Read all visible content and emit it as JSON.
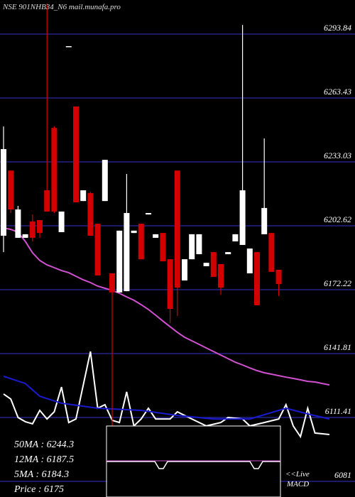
{
  "chart_data": {
    "type": "candlestick",
    "title": "NSE 901NHB34_N6  mail.munafa.pro",
    "ylim": [
      6073.57,
      6310.06
    ],
    "yticks": [
      6293.84,
      6263.43,
      6233.03,
      6202.62,
      6172.22,
      6141.81,
      6111.41,
      6081
    ],
    "grid": true,
    "grid_color": "#2a2aa8",
    "up_color": "#ffffff",
    "down_color": "#d40000",
    "open": [
      6197.9,
      6228.9,
      6196.9,
      6196.9,
      6204.7,
      6205.3,
      6219.5,
      6249.2,
      6199.6,
      6288.1,
      6259.4,
      6214.4,
      6218.2,
      6203.6,
      6214.4,
      6180.0,
      6170.9,
      6171.5,
      6199.2,
      6203.6,
      6208.0,
      6196.9,
      6199.2,
      6186.7,
      6228.9,
      6176.6,
      6186.7,
      6189.1,
      6183.4,
      6190.1,
      6184.4,
      6189.1,
      6195.2,
      6193.5,
      6180.0,
      6190.1,
      6198.6,
      6199.2,
      6181.7
    ],
    "high": [
      6249.9,
      6228.9,
      6212.1,
      6198.6,
      6208.0,
      6205.3,
      6308.4,
      6249.9,
      6209.4,
      6288.1,
      6259.4,
      6219.5,
      6218.8,
      6203.6,
      6234.0,
      6180.0,
      6200.3,
      6227.3,
      6200.3,
      6203.6,
      6208.7,
      6198.6,
      6199.2,
      6186.7,
      6228.9,
      6186.7,
      6198.6,
      6198.6,
      6185.0,
      6190.1,
      6184.4,
      6190.1,
      6198.6,
      6298.2,
      6191.8,
      6190.1,
      6244.2,
      6199.2,
      6181.7
    ],
    "low": [
      6190.1,
      6208.7,
      6196.9,
      6196.9,
      6195.2,
      6196.9,
      6209.4,
      6208.7,
      6199.6,
      6288.1,
      6213.8,
      6214.4,
      6197.9,
      6179.0,
      6214.4,
      6107.4,
      6170.9,
      6171.5,
      6199.2,
      6186.7,
      6208.0,
      6196.9,
      6185.7,
      6156.3,
      6159.7,
      6176.6,
      6186.7,
      6189.1,
      6183.4,
      6178.3,
      6169.8,
      6189.1,
      6195.2,
      6193.5,
      6180.0,
      6164.8,
      6198.6,
      6180.7,
      6169.2
    ],
    "close": [
      6239.1,
      6210.4,
      6210.4,
      6198.6,
      6196.9,
      6199.2,
      6209.4,
      6209.4,
      6209.4,
      6288.1,
      6213.8,
      6219.5,
      6197.9,
      6179.0,
      6234.0,
      6170.9,
      6200.3,
      6208.7,
      6200.3,
      6186.7,
      6208.7,
      6198.6,
      6185.7,
      6163.1,
      6173.2,
      6186.7,
      6198.6,
      6198.6,
      6185.0,
      6178.3,
      6173.2,
      6190.1,
      6198.6,
      6219.5,
      6191.8,
      6164.8,
      6211.1,
      6180.7,
      6174.9
    ],
    "ma": {
      "color": "#d050d0",
      "values": [
        6201.6,
        6200.9,
        6199.6,
        6195.2,
        6189.8,
        6186.1,
        6184.0,
        6182.7,
        6181.3,
        6180.3,
        6178.6,
        6176.9,
        6175.6,
        6173.9,
        6172.9,
        6171.9,
        6170.5,
        6168.8,
        6167.2,
        6165.1,
        6162.8,
        6160.1,
        6157.3,
        6154.6,
        6151.9,
        6149.6,
        6147.9,
        6146.2,
        6144.5,
        6142.8,
        6141.1,
        6139.4,
        6137.7,
        6136.4,
        6135.0,
        6133.7,
        6132.7,
        6132.0,
        6131.3,
        6130.6,
        6130.0,
        6129.3,
        6128.6,
        6128.3,
        6127.6,
        6126.9
      ]
    },
    "series": [
      {
        "color": "#ffffff",
        "x": [
          0,
          1,
          2,
          3,
          4,
          5,
          6,
          7,
          8,
          9,
          10,
          12,
          13,
          14,
          15,
          16,
          17,
          18,
          19,
          20,
          21,
          23,
          24,
          26,
          28,
          30,
          31,
          33,
          34,
          36,
          38,
          39,
          40,
          41,
          42,
          43,
          45
        ],
        "values": [
          6122.6,
          6120.2,
          6111.4,
          6109.4,
          6108.4,
          6114.8,
          6110.7,
          6114.1,
          6125.9,
          6109.0,
          6110.7,
          6142.8,
          6115.8,
          6117.5,
          6110.1,
          6109.0,
          6123.6,
          6107.4,
          6110.7,
          6115.8,
          6110.7,
          6110.7,
          6114.1,
          6110.7,
          6107.4,
          6109.0,
          6111.4,
          6110.7,
          6107.4,
          6109.0,
          6110.7,
          6117.5,
          6107.4,
          6102.3,
          6115.8,
          6104.0,
          6103.3
        ]
      },
      {
        "color": "#1a1ad0",
        "x": [
          0,
          3,
          5,
          8,
          13,
          19,
          24,
          29,
          34,
          39,
          42,
          45
        ],
        "values": [
          6131.0,
          6127.6,
          6121.5,
          6118.2,
          6115.8,
          6114.8,
          6112.4,
          6110.7,
          6110.7,
          6115.8,
          6113.1,
          6110.7
        ]
      }
    ],
    "info": [
      "50MA : 6244.3",
      "12MA : 6187.5",
      "5MA : 6184.3",
      "Price   : 6175"
    ],
    "macd_labels": [
      "<<Live",
      "MACD"
    ]
  }
}
